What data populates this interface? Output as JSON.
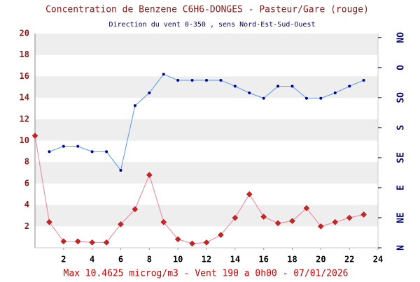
{
  "chart_data": {
    "type": "line",
    "title": "Concentration de Benzene C6H6-DONGES - Pasteur/Gare (rouge)",
    "subtitle": "Direction du vent 0-350 , sens Nord-Est-Sud-Ouest",
    "footer": "Max 10.4625 microg/m3 - Vent 190  a 0h00 - 07/01/2026",
    "x": [
      0,
      1,
      2,
      3,
      4,
      5,
      6,
      7,
      8,
      9,
      10,
      11,
      12,
      13,
      14,
      15,
      16,
      17,
      18,
      19,
      20,
      21,
      22,
      23
    ],
    "xlim": [
      0,
      24
    ],
    "xticks": [
      2,
      4,
      6,
      8,
      10,
      12,
      14,
      16,
      18,
      20,
      22,
      24
    ],
    "ylim": [
      0,
      20
    ],
    "yticks": [
      2,
      4,
      6,
      8,
      10,
      12,
      14,
      16,
      18,
      20
    ],
    "y2lim": [
      0,
      321
    ],
    "y2ticks": [
      {
        "value": 0,
        "label": "N"
      },
      {
        "value": 45,
        "label": "NE"
      },
      {
        "value": 90,
        "label": "E"
      },
      {
        "value": 135,
        "label": "SE"
      },
      {
        "value": 180,
        "label": "S"
      },
      {
        "value": 225,
        "label": "SO"
      },
      {
        "value": 270,
        "label": "O"
      },
      {
        "value": 315,
        "label": "NO"
      }
    ],
    "series": [
      {
        "name": "Benzene",
        "color": "#cc2222",
        "line_color": "#f080a0",
        "marker": "diamond",
        "values": [
          10.46,
          2.4,
          0.6,
          0.6,
          0.5,
          0.5,
          2.2,
          3.6,
          6.8,
          2.4,
          0.8,
          0.4,
          0.5,
          1.2,
          2.8,
          5.0,
          2.9,
          2.3,
          2.5,
          3.7,
          2.0,
          2.4,
          2.8,
          3.1
        ]
      },
      {
        "name": "Vent",
        "color": "#0000aa",
        "line_color": "#5599ee",
        "marker": "circle",
        "axis": "y2",
        "values": [
          null,
          144,
          152,
          152,
          144,
          144,
          116,
          213,
          232,
          260,
          251,
          251,
          251,
          251,
          242,
          232,
          224,
          242,
          242,
          224,
          224,
          232,
          242,
          251
        ]
      }
    ],
    "grid": true
  }
}
